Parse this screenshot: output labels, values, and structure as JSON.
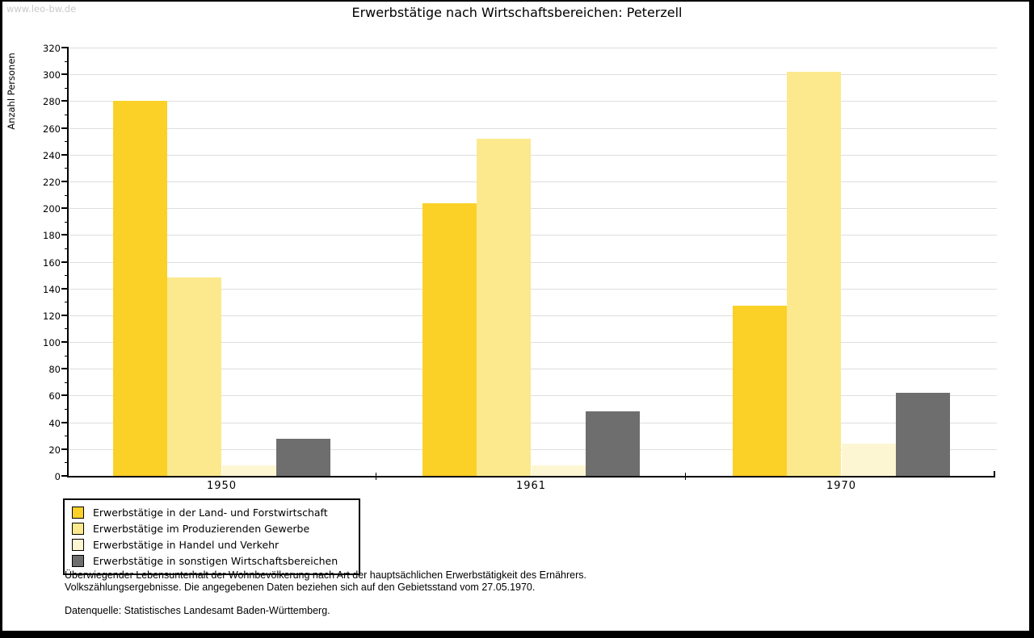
{
  "watermark": "www.leo-bw.de",
  "title": "Erwerbstätige nach Wirtschaftsbereichen: Peterzell",
  "chart_data": {
    "type": "bar",
    "title": "Erwerbstätige nach Wirtschaftsbereichen: Peterzell",
    "xlabel": "",
    "ylabel": "Anzahl Personen",
    "categories": [
      "1950",
      "1961",
      "1970"
    ],
    "series": [
      {
        "name": "Erwerbstätige in der Land- und Forstwirtschaft",
        "color": "#fbd128",
        "values": [
          280,
          204,
          127
        ]
      },
      {
        "name": "Erwerbstätige im Produzierenden Gewerbe",
        "color": "#fce98d",
        "values": [
          148,
          252,
          302
        ]
      },
      {
        "name": "Erwerbstätige in Handel und Verkehr",
        "color": "#fdf6d2",
        "values": [
          8,
          8,
          24
        ]
      },
      {
        "name": "Erwerbstätige in sonstigen Wirtschaftsbereichen",
        "color": "#6e6e6e",
        "values": [
          28,
          48,
          62
        ]
      }
    ],
    "ylim": [
      0,
      320
    ],
    "ytick_step": 20,
    "ytick_minor_step": 10,
    "grid": true,
    "legend_position": "bottom-left"
  },
  "colors": {
    "grid": "#dedede",
    "axis": "#000000",
    "watermark": "#c9c9c9",
    "background": "#ffffff"
  },
  "footnotes": {
    "line1": "Überwiegender Lebensunterhalt der Wohnbevölkerung nach Art der hauptsächlichen Erwerbstätigkeit des Ernährers.",
    "line2": "Volkszählungsergebnisse. Die angegebenen Daten beziehen sich auf den Gebietsstand vom 27.05.1970.",
    "source": "Datenquelle: Statistisches Landesamt Baden-Württemberg."
  }
}
